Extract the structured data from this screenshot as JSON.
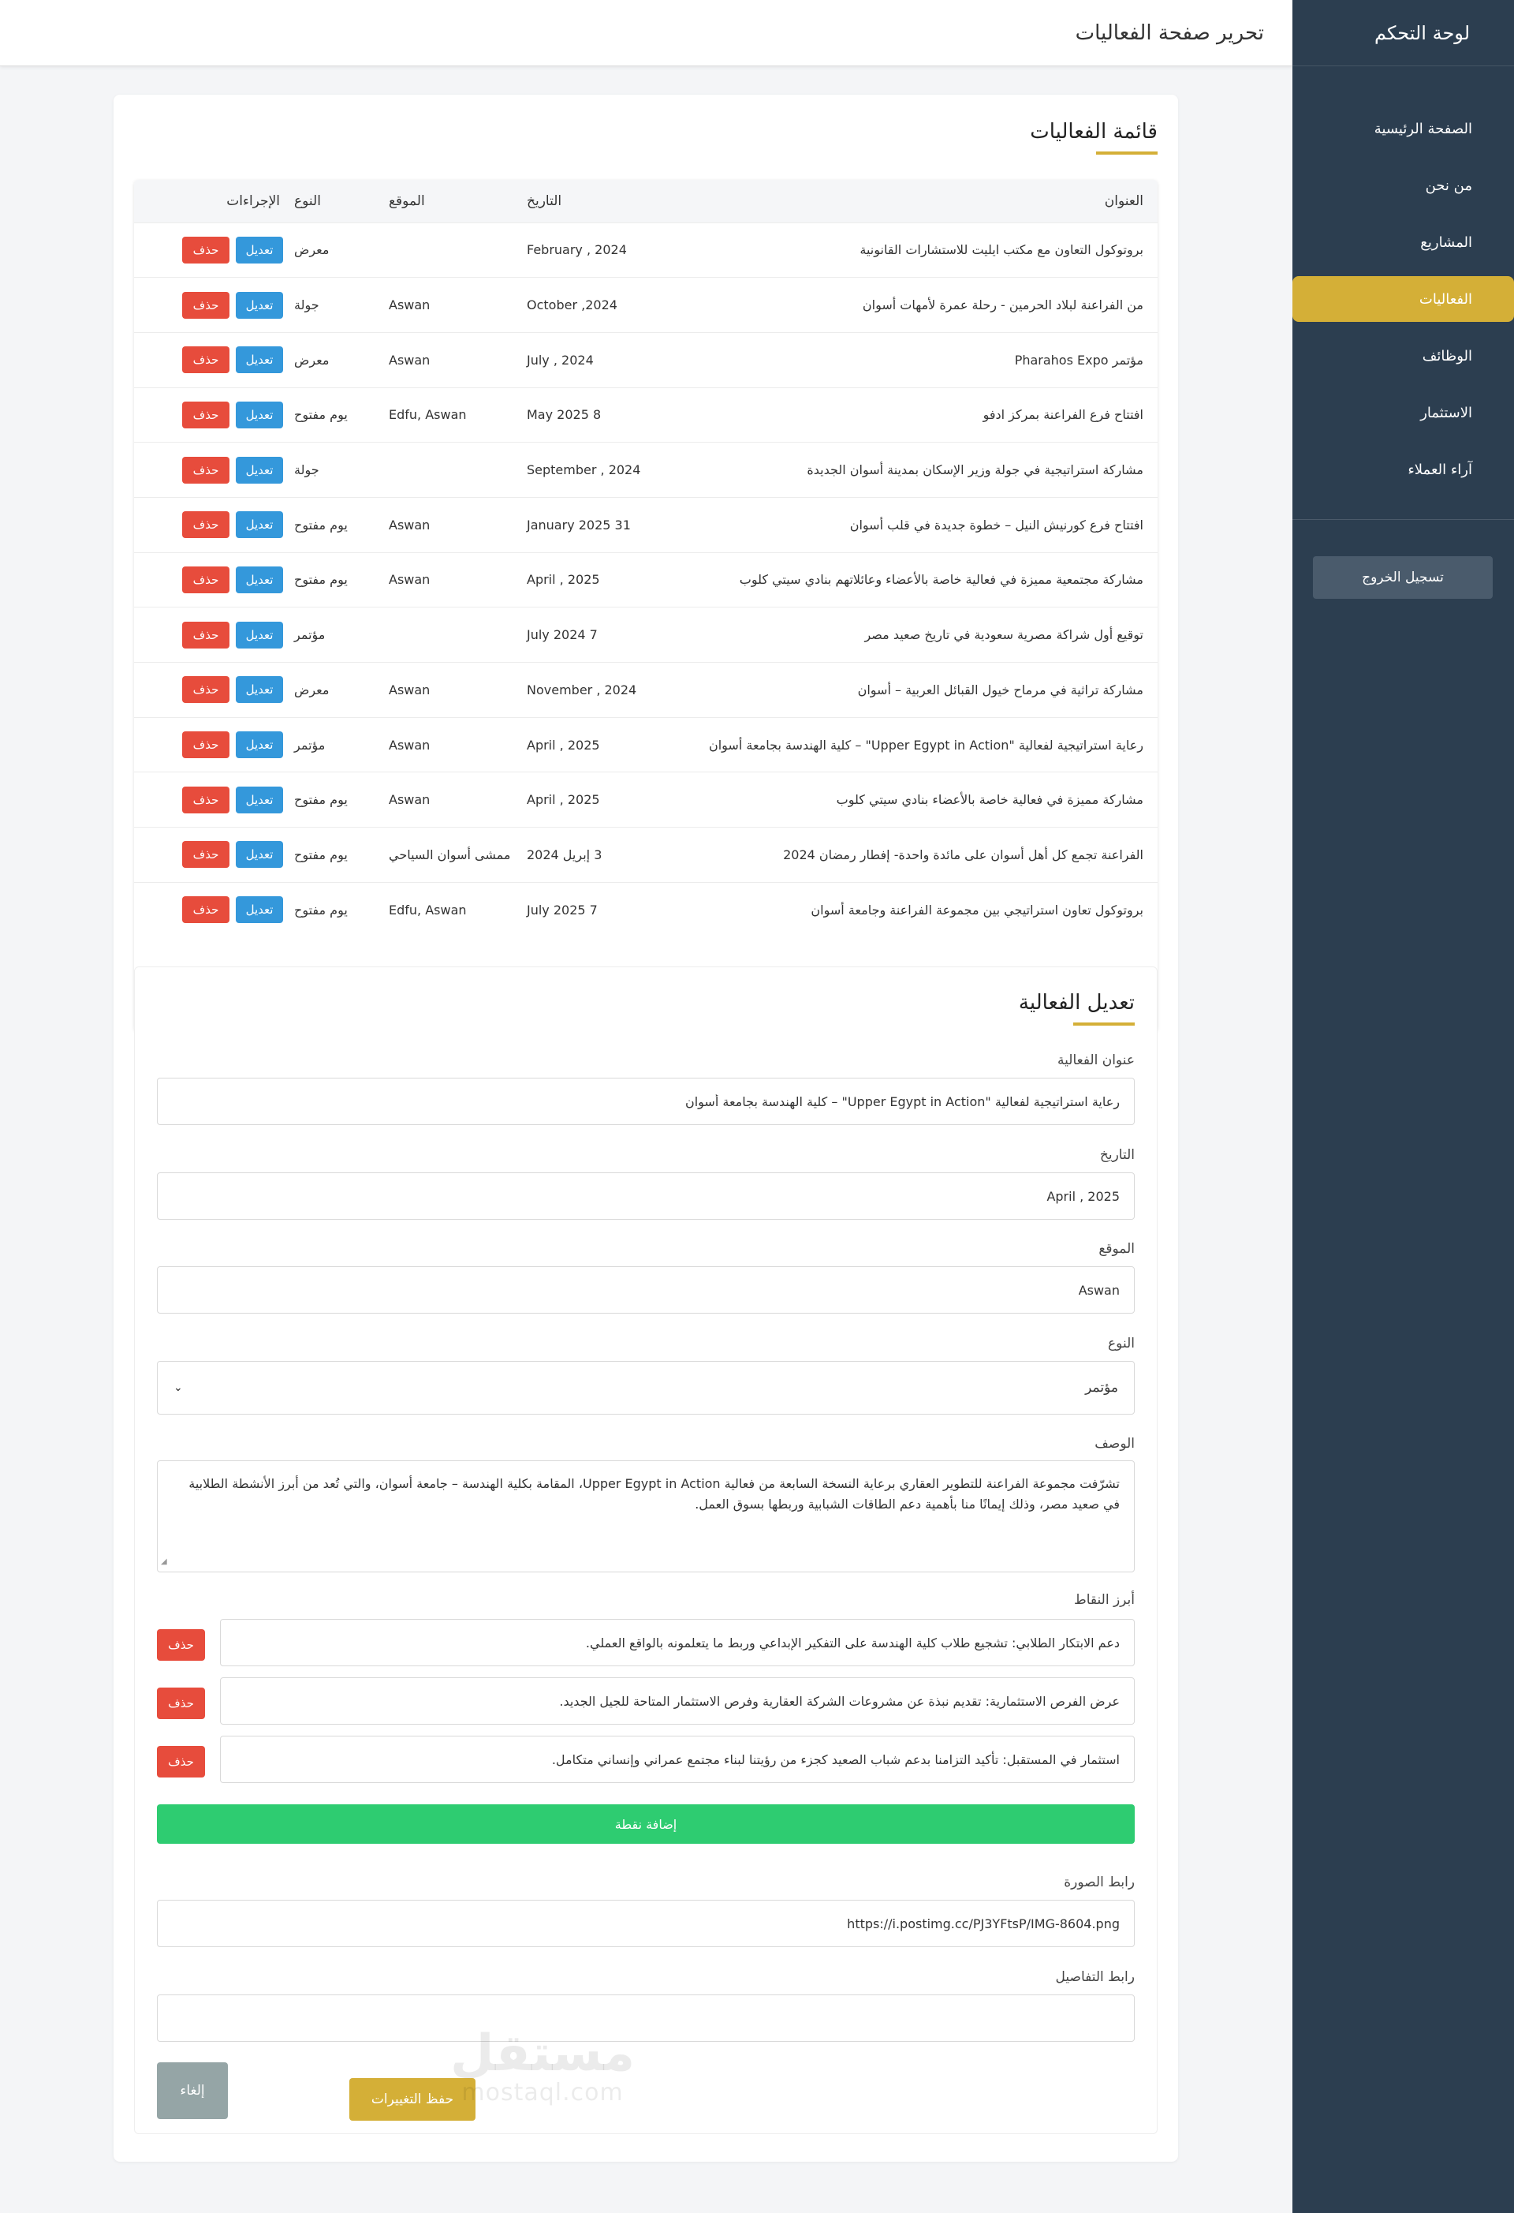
{
  "sidebar": {
    "title": "لوحة التحكم",
    "items": [
      {
        "label": "الصفحة الرئيسية"
      },
      {
        "label": "من نحن"
      },
      {
        "label": "المشاريع"
      },
      {
        "label": "الفعاليات"
      },
      {
        "label": "الوظائف"
      },
      {
        "label": "الاستثمار"
      },
      {
        "label": "آراء العملاء"
      }
    ],
    "active_index": 3,
    "logout_label": "تسجيل الخروج"
  },
  "header": {
    "title": "تحرير صفحة الفعاليات"
  },
  "list": {
    "title": "قائمة الفعاليات",
    "columns": {
      "title": "العنوان",
      "date": "التاريخ",
      "location": "الموقع",
      "type": "النوع",
      "actions": "الإجراءات"
    },
    "edit_label": "تعديل",
    "delete_label": "حذف",
    "rows": [
      {
        "title": "بروتوكول التعاون مع مكتب ايليت للاستشارات القانونية",
        "date": "February , 2024",
        "location": "",
        "type": "معرض"
      },
      {
        "title": "من الفراعنة لبلاد الحرمين - رحلة عمرة لأمهات أسوان",
        "date": "October ,2024",
        "location": "Aswan",
        "type": "جولة"
      },
      {
        "title": "مؤتمر Pharahos Expo",
        "date": "July , 2024",
        "location": "Aswan",
        "type": "معرض"
      },
      {
        "title": "افتتاح فرع الفراعنة بمركز ادفو",
        "date": "May 2025 8",
        "location": "Edfu, Aswan",
        "type": "يوم مفتوح"
      },
      {
        "title": "مشاركة استراتيجية في جولة وزير الإسكان بمدينة أسوان الجديدة",
        "date": "September , 2024",
        "location": "",
        "type": "جولة"
      },
      {
        "title": "افتتاح فرع كورنيش النيل – خطوة جديدة في قلب أسوان",
        "date": "January 2025 31",
        "location": "Aswan",
        "type": "يوم مفتوح"
      },
      {
        "title": "مشاركة مجتمعية مميزة في فعالية خاصة بالأعضاء وعائلاتهم بنادي سيتي كلوب",
        "date": "April , 2025",
        "location": "Aswan",
        "type": "يوم مفتوح"
      },
      {
        "title": "توقيع أول شراكة مصرية سعودية في تاريخ صعيد مصر",
        "date": "July 2024 7",
        "location": "",
        "type": "مؤتمر"
      },
      {
        "title": "مشاركة تراثية في مرماح خيول القبائل العربية – أسوان",
        "date": "November , 2024",
        "location": "Aswan",
        "type": "معرض"
      },
      {
        "title": "رعاية استراتيجية لفعالية \"Upper Egypt in Action\" – كلية الهندسة بجامعة أسوان",
        "date": "April , 2025",
        "location": "Aswan",
        "type": "مؤتمر"
      },
      {
        "title": "مشاركة مميزة في فعالية خاصة بالأعضاء بنادي سيتي كلوب",
        "date": "April , 2025",
        "location": "Aswan",
        "type": "يوم مفتوح"
      },
      {
        "title": "الفراعنة تجمع كل أهل أسوان على مائدة واحدة- إفطار رمضان 2024",
        "date": "3 إبريل 2024",
        "location": "ممشى أسوان السياحي",
        "type": "يوم مفتوح"
      },
      {
        "title": "بروتوكول تعاون استراتيجي بين مجموعة الفراعنة وجامعة أسوان",
        "date": "July 2025 7",
        "location": "Edfu, Aswan",
        "type": "يوم مفتوح"
      }
    ]
  },
  "form": {
    "title": "تعديل الفعالية",
    "title_label": "عنوان الفعالية",
    "title_value": "رعاية استراتيجية لفعالية \"Upper Egypt in Action\" – كلية الهندسة بجامعة أسوان",
    "date_label": "التاريخ",
    "date_value": "April , 2025",
    "location_label": "الموقع",
    "location_value": "Aswan",
    "type_label": "النوع",
    "type_value": "مؤتمر",
    "description_label": "الوصف",
    "description_value": "تشرّفت مجموعة الفراعنة للتطوير العقاري برعاية النسخة السابعة من فعالية Upper Egypt in Action، المقامة بكلية الهندسة – جامعة أسوان، والتي تُعد من أبرز الأنشطة الطلابية في صعيد مصر، وذلك إيمانًا منا بأهمية دعم الطاقات الشبابية وربطها بسوق العمل.",
    "points_label": "أبرز النقاط",
    "points": [
      "دعم الابتكار الطلابي: تشجيع طلاب كلية الهندسة على التفكير الإبداعي وربط ما يتعلمونه بالواقع العملي.",
      "عرض الفرص الاستثمارية: تقديم نبذة عن مشروعات الشركة العقارية وفرص الاستثمار المتاحة للجيل الجديد.",
      "استثمار في المستقبل: تأكيد التزامنا بدعم شباب الصعيد كجزء من رؤيتنا لبناء مجتمع عمراني وإنساني متكامل."
    ],
    "point_delete_label": "حذف",
    "add_point_label": "إضافة نقطة",
    "image_label": "رابط الصورة",
    "image_value": "https://i.postimg.cc/PJ3YFtsP/IMG-8604.png",
    "details_label": "رابط التفاصيل",
    "details_value": "",
    "save_label": "حفظ التغييرات",
    "cancel_label": "إلغاء"
  },
  "watermark": {
    "main": "مستقل",
    "sub": "mostaql.com"
  },
  "colors": {
    "sidebar": "#2c3e50",
    "accent": "#d4af37",
    "edit": "#3498db",
    "delete": "#e74c3c",
    "add": "#2ecc71",
    "cancel": "#95a5a6"
  }
}
